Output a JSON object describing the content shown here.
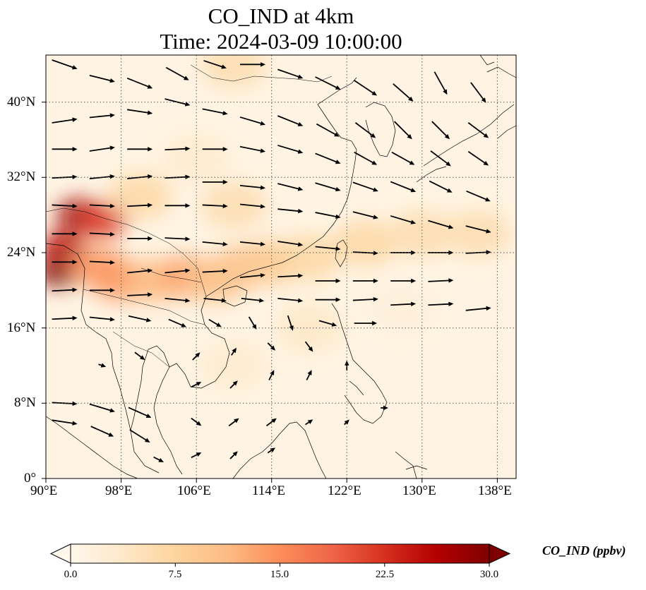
{
  "title": {
    "line1": "CO_IND at 4km",
    "line2": "Time: 2024-03-09 10:00:00"
  },
  "map": {
    "projection": "PlateCarree",
    "lon_range": [
      90,
      140
    ],
    "lat_range": [
      0,
      45
    ],
    "gridlines": "dotted",
    "lon_ticks": [
      "90°E",
      "98°E",
      "106°E",
      "114°E",
      "122°E",
      "130°E",
      "138°E"
    ],
    "lat_ticks": [
      "0°",
      "8°N",
      "16°N",
      "24°N",
      "32°N",
      "40°N"
    ],
    "colormap": "OrRd",
    "colors": {
      "low": "#fff7ec",
      "mid": "#fdbb84",
      "high": "#7f0000",
      "wind_arrow": "#000000",
      "coastline": "#000000"
    }
  },
  "colorbar": {
    "label": "CO_IND (ppbv)",
    "ticks": [
      "0.0",
      "7.5",
      "15.0",
      "22.5",
      "30.0"
    ],
    "range": [
      0,
      30
    ],
    "extend": "both"
  },
  "chart_data": {
    "type": "heatmap",
    "variable": "CO_IND",
    "units": "ppbv",
    "level": "4km",
    "time": "2024-03-09 10:00:00",
    "concentration_regions": [
      {
        "lon": 91.5,
        "lat": 22.0,
        "value": 30
      },
      {
        "lon": 93.5,
        "lat": 28.0,
        "value": 28
      },
      {
        "lon": 96.0,
        "lat": 27.5,
        "value": 22
      },
      {
        "lon": 92.0,
        "lat": 24.5,
        "value": 26
      },
      {
        "lon": 95.5,
        "lat": 22.5,
        "value": 14
      },
      {
        "lon": 98.0,
        "lat": 21.0,
        "value": 14
      },
      {
        "lon": 101.5,
        "lat": 21.0,
        "value": 11
      },
      {
        "lon": 105.0,
        "lat": 21.5,
        "value": 13
      },
      {
        "lon": 108.0,
        "lat": 21.0,
        "value": 10
      },
      {
        "lon": 111.0,
        "lat": 22.5,
        "value": 10
      },
      {
        "lon": 114.0,
        "lat": 23.0,
        "value": 9
      },
      {
        "lon": 118.0,
        "lat": 23.5,
        "value": 7
      },
      {
        "lon": 124.0,
        "lat": 25.0,
        "value": 7
      },
      {
        "lon": 130.0,
        "lat": 26.0,
        "value": 6
      },
      {
        "lon": 136.0,
        "lat": 26.0,
        "value": 6
      },
      {
        "lon": 100.0,
        "lat": 30.0,
        "value": 7
      },
      {
        "lon": 110.0,
        "lat": 29.0,
        "value": 6
      },
      {
        "lon": 106.0,
        "lat": 34.0,
        "value": 3
      },
      {
        "lon": 110.0,
        "lat": 44.0,
        "value": 6
      },
      {
        "lon": 118.0,
        "lat": 16.0,
        "value": 4
      },
      {
        "lon": 110.0,
        "lat": 12.0,
        "value": 3
      },
      {
        "lon": 128.0,
        "lat": 18.0,
        "value": 2
      }
    ],
    "wind_vectors": [
      {
        "lon": 92,
        "lat": 44,
        "u": 1.0,
        "v": -0.35
      },
      {
        "lon": 96,
        "lat": 42.5,
        "u": 1.0,
        "v": -0.25
      },
      {
        "lon": 100,
        "lat": 42,
        "u": 1.0,
        "v": -0.4
      },
      {
        "lon": 104,
        "lat": 43,
        "u": 0.9,
        "v": -0.5
      },
      {
        "lon": 108,
        "lat": 44,
        "u": 0.9,
        "v": -0.3
      },
      {
        "lon": 112,
        "lat": 44,
        "u": 1.0,
        "v": 0.0
      },
      {
        "lon": 116,
        "lat": 43,
        "u": 1.0,
        "v": -0.35
      },
      {
        "lon": 120,
        "lat": 42,
        "u": 1.0,
        "v": -0.5
      },
      {
        "lon": 124,
        "lat": 41.5,
        "u": 0.9,
        "v": -0.6
      },
      {
        "lon": 128,
        "lat": 41,
        "u": 0.8,
        "v": -0.7
      },
      {
        "lon": 132,
        "lat": 42,
        "u": 0.5,
        "v": -0.9
      },
      {
        "lon": 136,
        "lat": 41,
        "u": 0.6,
        "v": -0.8
      },
      {
        "lon": 92,
        "lat": 38,
        "u": 1.0,
        "v": 0.15
      },
      {
        "lon": 96,
        "lat": 38.5,
        "u": 1.0,
        "v": 0.1
      },
      {
        "lon": 100,
        "lat": 39,
        "u": 1.0,
        "v": -0.15
      },
      {
        "lon": 104,
        "lat": 40,
        "u": 1.0,
        "v": -0.25
      },
      {
        "lon": 108,
        "lat": 39,
        "u": 1.0,
        "v": -0.2
      },
      {
        "lon": 112,
        "lat": 38,
        "u": 1.0,
        "v": -0.3
      },
      {
        "lon": 116,
        "lat": 38,
        "u": 1.0,
        "v": -0.4
      },
      {
        "lon": 120,
        "lat": 37,
        "u": 0.9,
        "v": -0.5
      },
      {
        "lon": 124,
        "lat": 37,
        "u": 0.8,
        "v": -0.6
      },
      {
        "lon": 128,
        "lat": 37,
        "u": 0.7,
        "v": -0.7
      },
      {
        "lon": 132,
        "lat": 37,
        "u": 0.7,
        "v": -0.7
      },
      {
        "lon": 136,
        "lat": 37,
        "u": 0.8,
        "v": -0.6
      },
      {
        "lon": 92,
        "lat": 35,
        "u": 1.0,
        "v": 0.0
      },
      {
        "lon": 96,
        "lat": 35,
        "u": 1.0,
        "v": 0.15
      },
      {
        "lon": 100,
        "lat": 35,
        "u": 1.0,
        "v": 0.0
      },
      {
        "lon": 104,
        "lat": 35,
        "u": 1.0,
        "v": 0.05
      },
      {
        "lon": 108,
        "lat": 35,
        "u": 1.0,
        "v": 0.0
      },
      {
        "lon": 112,
        "lat": 35,
        "u": 1.0,
        "v": -0.2
      },
      {
        "lon": 116,
        "lat": 35,
        "u": 1.0,
        "v": -0.3
      },
      {
        "lon": 120,
        "lat": 34,
        "u": 1.0,
        "v": -0.4
      },
      {
        "lon": 124,
        "lat": 34,
        "u": 0.9,
        "v": -0.5
      },
      {
        "lon": 128,
        "lat": 34,
        "u": 0.9,
        "v": -0.5
      },
      {
        "lon": 132,
        "lat": 34,
        "u": 0.8,
        "v": -0.6
      },
      {
        "lon": 136,
        "lat": 34,
        "u": 0.8,
        "v": -0.55
      },
      {
        "lon": 92,
        "lat": 32,
        "u": 1.0,
        "v": 0.05
      },
      {
        "lon": 96,
        "lat": 32,
        "u": 1.0,
        "v": 0.1
      },
      {
        "lon": 100,
        "lat": 32,
        "u": 1.0,
        "v": 0.1
      },
      {
        "lon": 104,
        "lat": 32,
        "u": 1.0,
        "v": 0.05
      },
      {
        "lon": 108,
        "lat": 31.5,
        "u": 1.0,
        "v": 0.0
      },
      {
        "lon": 112,
        "lat": 31,
        "u": 1.0,
        "v": -0.1
      },
      {
        "lon": 116,
        "lat": 31,
        "u": 1.0,
        "v": -0.25
      },
      {
        "lon": 120,
        "lat": 31,
        "u": 1.0,
        "v": -0.3
      },
      {
        "lon": 124,
        "lat": 31,
        "u": 1.0,
        "v": -0.35
      },
      {
        "lon": 128,
        "lat": 31,
        "u": 1.0,
        "v": -0.4
      },
      {
        "lon": 132,
        "lat": 31,
        "u": 0.9,
        "v": -0.45
      },
      {
        "lon": 136,
        "lat": 30,
        "u": 0.95,
        "v": -0.4
      },
      {
        "lon": 92,
        "lat": 29,
        "u": 1.0,
        "v": -0.05
      },
      {
        "lon": 96,
        "lat": 29,
        "u": 1.0,
        "v": -0.05
      },
      {
        "lon": 100,
        "lat": 29,
        "u": 1.0,
        "v": 0.05
      },
      {
        "lon": 104,
        "lat": 29,
        "u": 1.0,
        "v": 0.0
      },
      {
        "lon": 108,
        "lat": 29,
        "u": 1.0,
        "v": -0.05
      },
      {
        "lon": 112,
        "lat": 29,
        "u": 1.0,
        "v": -0.1
      },
      {
        "lon": 116,
        "lat": 28.5,
        "u": 1.0,
        "v": -0.1
      },
      {
        "lon": 120,
        "lat": 28,
        "u": 1.0,
        "v": -0.2
      },
      {
        "lon": 124,
        "lat": 28,
        "u": 1.0,
        "v": -0.25
      },
      {
        "lon": 128,
        "lat": 27.5,
        "u": 1.0,
        "v": -0.3
      },
      {
        "lon": 132,
        "lat": 27,
        "u": 1.0,
        "v": -0.3
      },
      {
        "lon": 136,
        "lat": 26.5,
        "u": 1.0,
        "v": -0.25
      },
      {
        "lon": 92,
        "lat": 26,
        "u": 1.0,
        "v": 0.0
      },
      {
        "lon": 96,
        "lat": 26,
        "u": 1.0,
        "v": -0.05
      },
      {
        "lon": 100,
        "lat": 25.5,
        "u": 1.0,
        "v": 0.0
      },
      {
        "lon": 104,
        "lat": 25.5,
        "u": 1.0,
        "v": -0.05
      },
      {
        "lon": 108,
        "lat": 25,
        "u": 1.0,
        "v": -0.1
      },
      {
        "lon": 112,
        "lat": 25,
        "u": 1.0,
        "v": -0.1
      },
      {
        "lon": 116,
        "lat": 25,
        "u": 1.0,
        "v": -0.15
      },
      {
        "lon": 120,
        "lat": 24.5,
        "u": 1.0,
        "v": -0.1
      },
      {
        "lon": 124,
        "lat": 24,
        "u": 1.0,
        "v": -0.05
      },
      {
        "lon": 128,
        "lat": 24,
        "u": 1.0,
        "v": 0.0
      },
      {
        "lon": 132,
        "lat": 24,
        "u": 1.0,
        "v": 0.0
      },
      {
        "lon": 136,
        "lat": 24,
        "u": 1.0,
        "v": 0.05
      },
      {
        "lon": 92,
        "lat": 23,
        "u": 1.0,
        "v": 0.0
      },
      {
        "lon": 96,
        "lat": 23,
        "u": 1.0,
        "v": -0.05
      },
      {
        "lon": 100,
        "lat": 22,
        "u": 1.0,
        "v": 0.1
      },
      {
        "lon": 104,
        "lat": 22,
        "u": 1.0,
        "v": 0.1
      },
      {
        "lon": 108,
        "lat": 22,
        "u": 1.0,
        "v": 0.05
      },
      {
        "lon": 112,
        "lat": 21.5,
        "u": 1.0,
        "v": 0.1
      },
      {
        "lon": 116,
        "lat": 21.5,
        "u": 1.0,
        "v": 0.05
      },
      {
        "lon": 120,
        "lat": 21,
        "u": 1.0,
        "v": 0.0
      },
      {
        "lon": 124,
        "lat": 21,
        "u": 1.0,
        "v": 0.0
      },
      {
        "lon": 128,
        "lat": 21,
        "u": 1.0,
        "v": 0.0
      },
      {
        "lon": 132,
        "lat": 21,
        "u": 1.0,
        "v": 0.05
      },
      {
        "lon": 92,
        "lat": 20,
        "u": 1.0,
        "v": 0.05
      },
      {
        "lon": 96,
        "lat": 20,
        "u": 1.0,
        "v": 0.0
      },
      {
        "lon": 100,
        "lat": 19.5,
        "u": 1.0,
        "v": 0.05
      },
      {
        "lon": 104,
        "lat": 19,
        "u": 1.0,
        "v": -0.1
      },
      {
        "lon": 108,
        "lat": 19,
        "u": 0.9,
        "v": -0.1
      },
      {
        "lon": 112,
        "lat": 19,
        "u": 0.9,
        "v": -0.1
      },
      {
        "lon": 116,
        "lat": 19,
        "u": 1.0,
        "v": -0.1
      },
      {
        "lon": 120,
        "lat": 19,
        "u": 1.0,
        "v": 0.0
      },
      {
        "lon": 124,
        "lat": 19,
        "u": 1.0,
        "v": 0.05
      },
      {
        "lon": 128,
        "lat": 18.5,
        "u": 1.0,
        "v": 0.05
      },
      {
        "lon": 132,
        "lat": 18.5,
        "u": 1.0,
        "v": 0.05
      },
      {
        "lon": 136,
        "lat": 18,
        "u": 1.0,
        "v": 0.1
      },
      {
        "lon": 92,
        "lat": 17,
        "u": 1.0,
        "v": 0.05
      },
      {
        "lon": 96,
        "lat": 17,
        "u": 1.0,
        "v": -0.1
      },
      {
        "lon": 100,
        "lat": 17,
        "u": 0.9,
        "v": -0.2
      },
      {
        "lon": 104,
        "lat": 16.5,
        "u": 0.7,
        "v": -0.3
      },
      {
        "lon": 108,
        "lat": 16.5,
        "u": 0.5,
        "v": -0.3
      },
      {
        "lon": 112,
        "lat": 16.5,
        "u": 0.3,
        "v": -0.5
      },
      {
        "lon": 116,
        "lat": 16.5,
        "u": 0.2,
        "v": -0.6
      },
      {
        "lon": 120,
        "lat": 16.5,
        "u": 0.7,
        "v": -0.2
      },
      {
        "lon": 124,
        "lat": 16.5,
        "u": 0.9,
        "v": 0.0
      },
      {
        "lon": 92,
        "lat": 8,
        "u": 1.0,
        "v": -0.05
      },
      {
        "lon": 96,
        "lat": 7.5,
        "u": 1.0,
        "v": -0.3
      },
      {
        "lon": 100,
        "lat": 7,
        "u": 0.9,
        "v": -0.4
      },
      {
        "lon": 92,
        "lat": 6,
        "u": 1.0,
        "v": -0.15
      },
      {
        "lon": 96,
        "lat": 5,
        "u": 0.9,
        "v": -0.4
      },
      {
        "lon": 100,
        "lat": 4.5,
        "u": 0.8,
        "v": -0.5
      },
      {
        "lon": 106,
        "lat": 6,
        "u": 0.4,
        "v": -0.3
      },
      {
        "lon": 110,
        "lat": 6,
        "u": 0.4,
        "v": 0.3
      },
      {
        "lon": 114,
        "lat": 6,
        "u": 0.4,
        "v": 0.3
      },
      {
        "lon": 118,
        "lat": 6,
        "u": 0.3,
        "v": 0.2
      },
      {
        "lon": 106,
        "lat": 10,
        "u": 0.4,
        "v": 0.2
      },
      {
        "lon": 110,
        "lat": 10,
        "u": 0.3,
        "v": 0.3
      },
      {
        "lon": 114,
        "lat": 11,
        "u": 0.2,
        "v": 0.4
      },
      {
        "lon": 118,
        "lat": 11,
        "u": 0.2,
        "v": 0.4
      },
      {
        "lon": 122,
        "lat": 12,
        "u": 0.0,
        "v": 0.4
      },
      {
        "lon": 106,
        "lat": 13,
        "u": 0.3,
        "v": 0.3
      },
      {
        "lon": 110,
        "lat": 13.5,
        "u": 0.2,
        "v": 0.3
      },
      {
        "lon": 114,
        "lat": 14,
        "u": 0.3,
        "v": -0.3
      },
      {
        "lon": 118,
        "lat": 14,
        "u": 0.3,
        "v": -0.4
      },
      {
        "lon": 100,
        "lat": 13,
        "u": 0.4,
        "v": -0.3
      },
      {
        "lon": 96,
        "lat": 12,
        "u": 0.3,
        "v": -0.1
      },
      {
        "lon": 126,
        "lat": 7.5,
        "u": 0.3,
        "v": 0.0
      },
      {
        "lon": 122,
        "lat": 6,
        "u": 0.2,
        "v": 0.2
      },
      {
        "lon": 102,
        "lat": 2,
        "u": 0.4,
        "v": -0.2
      },
      {
        "lon": 106,
        "lat": 2.5,
        "u": 0.4,
        "v": 0.2
      },
      {
        "lon": 110,
        "lat": 2.5,
        "u": 0.3,
        "v": 0.3
      },
      {
        "lon": 114,
        "lat": 3,
        "u": 0.3,
        "v": 0.2
      }
    ]
  }
}
